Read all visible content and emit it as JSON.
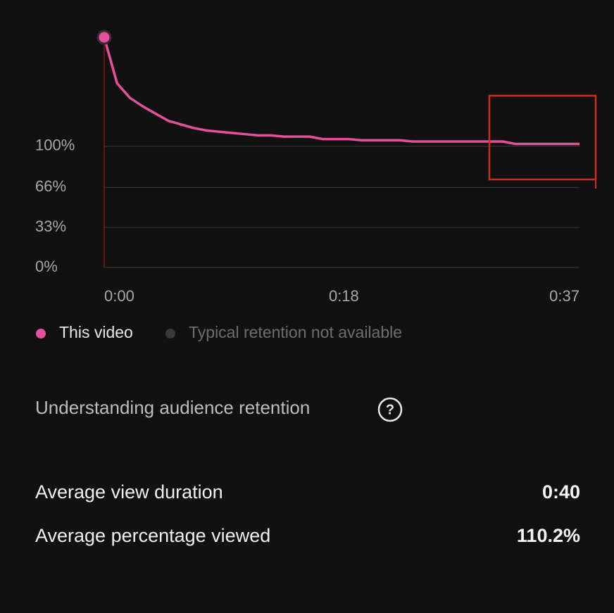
{
  "chart_data": {
    "type": "line",
    "x": [
      0,
      1,
      2,
      3,
      4,
      5,
      6,
      7,
      8,
      9,
      10,
      11,
      12,
      13,
      14,
      15,
      16,
      17,
      18,
      19,
      20,
      21,
      22,
      23,
      24,
      25,
      26,
      27,
      28,
      29,
      30,
      31,
      32,
      33,
      34,
      35,
      36,
      37
    ],
    "series": [
      {
        "name": "This video",
        "color": "#e4509c",
        "values": [
          190,
          152,
          140,
          133,
          127,
          121,
          118,
          115,
          113,
          112,
          111,
          110,
          109,
          109,
          108,
          108,
          108,
          106,
          106,
          106,
          105,
          105,
          105,
          105,
          104,
          104,
          104,
          104,
          104,
          104,
          104,
          104,
          102,
          102,
          102,
          102,
          102,
          102
        ]
      }
    ],
    "xlim": [
      0,
      37
    ],
    "ylim": [
      0,
      190
    ],
    "xticks": [
      {
        "value": 0,
        "label": "0:00"
      },
      {
        "value": 18,
        "label": "0:18"
      },
      {
        "value": 37,
        "label": "0:37"
      }
    ],
    "yticks": [
      {
        "value": 0,
        "label": "0%"
      },
      {
        "value": 33,
        "label": "33%"
      },
      {
        "value": 66,
        "label": "66%"
      },
      {
        "value": 100,
        "label": "100%"
      }
    ],
    "grid": true
  },
  "legend_unavailable": "Typical retention not available",
  "help_link": "Understanding audience retention",
  "help_icon": "?",
  "stats": [
    {
      "label": "Average view duration",
      "value": "0:40"
    },
    {
      "label": "Average percentage viewed",
      "value": "110.2%"
    }
  ]
}
